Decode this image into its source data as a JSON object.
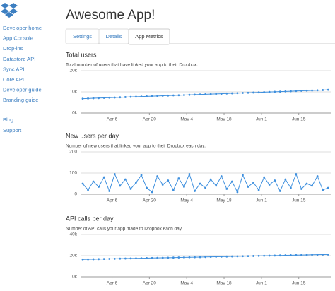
{
  "sidebar": {
    "links": [
      "Developer home",
      "App Console",
      "Drop-ins",
      "Datastore API",
      "Sync API",
      "Core API",
      "Developer guide",
      "Branding guide"
    ],
    "more_links": [
      "Blog",
      "Support"
    ]
  },
  "header": {
    "title": "Awesome App!"
  },
  "tabs": {
    "items": [
      "Settings",
      "Details",
      "App Metrics"
    ],
    "active": 2
  },
  "charts": [
    {
      "type": "line",
      "title": "Total users",
      "subtitle": "Total number of users that have linked your app to their Dropbox.",
      "color": "#3d8fde",
      "x": [
        0,
        2,
        4,
        6,
        8,
        10,
        12,
        14,
        16,
        18,
        20,
        22,
        24,
        26,
        28,
        30,
        32,
        34,
        36,
        38,
        40,
        42,
        44,
        46,
        48,
        50,
        52,
        54,
        56,
        58,
        60,
        62,
        64,
        66,
        68,
        70,
        72,
        74,
        76,
        78,
        80,
        82,
        84,
        86,
        88,
        90,
        92
      ],
      "values": [
        6800,
        6890,
        6980,
        7070,
        7160,
        7250,
        7340,
        7430,
        7520,
        7610,
        7700,
        7790,
        7880,
        7970,
        8060,
        8150,
        8240,
        8330,
        8420,
        8510,
        8600,
        8690,
        8780,
        8870,
        8960,
        9050,
        9140,
        9230,
        9320,
        9410,
        9500,
        9590,
        9680,
        9770,
        9860,
        9950,
        10040,
        10130,
        10220,
        10310,
        10400,
        10490,
        10580,
        10670,
        10760,
        10850,
        10940
      ],
      "xlim": [
        0,
        93
      ],
      "xticks": [
        {
          "value": 11,
          "label": "Apr 6"
        },
        {
          "value": 25,
          "label": "Apr 20"
        },
        {
          "value": 39,
          "label": "May 4"
        },
        {
          "value": 53,
          "label": "May 18"
        },
        {
          "value": 67,
          "label": "Jun 1"
        },
        {
          "value": 81,
          "label": "Jun 15"
        }
      ],
      "ylim": [
        0,
        20000
      ],
      "yticks": [
        {
          "value": 0,
          "label": "0k"
        },
        {
          "value": 10000,
          "label": "10k"
        },
        {
          "value": 20000,
          "label": "20k"
        }
      ],
      "grid": true
    },
    {
      "type": "line",
      "title": "New users per day",
      "subtitle": "Number of new users that linked your app to their Dropbox each day.",
      "color": "#3d8fde",
      "x": [
        0,
        2,
        4,
        6,
        8,
        10,
        12,
        14,
        16,
        18,
        20,
        22,
        24,
        26,
        28,
        30,
        32,
        34,
        36,
        38,
        40,
        42,
        44,
        46,
        48,
        50,
        52,
        54,
        56,
        58,
        60,
        62,
        64,
        66,
        68,
        70,
        72,
        74,
        76,
        78,
        80,
        82,
        84,
        86,
        88,
        90,
        92
      ],
      "values": [
        50,
        20,
        60,
        35,
        80,
        15,
        95,
        40,
        70,
        25,
        55,
        90,
        30,
        10,
        85,
        45,
        65,
        20,
        75,
        35,
        95,
        15,
        50,
        30,
        70,
        40,
        85,
        25,
        60,
        10,
        90,
        35,
        55,
        20,
        80,
        45,
        65,
        15,
        70,
        30,
        95,
        25,
        50,
        40,
        85,
        20,
        30
      ],
      "xlim": [
        0,
        93
      ],
      "xticks": [
        {
          "value": 11,
          "label": "Apr 6"
        },
        {
          "value": 25,
          "label": "Apr 20"
        },
        {
          "value": 39,
          "label": "May 4"
        },
        {
          "value": 53,
          "label": "May 18"
        },
        {
          "value": 67,
          "label": "Jun 1"
        },
        {
          "value": 81,
          "label": "Jun 15"
        }
      ],
      "ylim": [
        0,
        200
      ],
      "yticks": [
        0,
        100,
        200
      ],
      "grid": true
    },
    {
      "type": "line",
      "title": "API calls per day",
      "subtitle": "Number of API calls your app made to Dropbox each day.",
      "color": "#3d8fde",
      "x": [
        0,
        2,
        4,
        6,
        8,
        10,
        12,
        14,
        16,
        18,
        20,
        22,
        24,
        26,
        28,
        30,
        32,
        34,
        36,
        38,
        40,
        42,
        44,
        46,
        48,
        50,
        52,
        54,
        56,
        58,
        60,
        62,
        64,
        66,
        68,
        70,
        72,
        74,
        76,
        78,
        80,
        82,
        84,
        86,
        88,
        90,
        92
      ],
      "values": [
        16500,
        16600,
        16700,
        16800,
        16900,
        17000,
        17100,
        17200,
        17300,
        17400,
        17500,
        17600,
        17700,
        17800,
        17900,
        18000,
        18100,
        18200,
        18300,
        18400,
        18500,
        18600,
        18700,
        18800,
        18900,
        19000,
        19100,
        19200,
        19300,
        19400,
        19500,
        19600,
        19700,
        19800,
        19900,
        20000,
        20100,
        20200,
        20300,
        20400,
        20500,
        20600,
        20700,
        20800,
        20900,
        21000,
        21100
      ],
      "xlim": [
        0,
        93
      ],
      "xticks": [
        {
          "value": 11,
          "label": "Apr 6"
        },
        {
          "value": 25,
          "label": "Apr 20"
        },
        {
          "value": 39,
          "label": "May 4"
        },
        {
          "value": 53,
          "label": "May 18"
        },
        {
          "value": 67,
          "label": "Jun 1"
        },
        {
          "value": 81,
          "label": "Jun 15"
        }
      ],
      "ylim": [
        0,
        40000
      ],
      "yticks": [
        {
          "value": 0,
          "label": "0k"
        },
        {
          "value": 20000,
          "label": "20k"
        },
        {
          "value": 40000,
          "label": "40k"
        }
      ],
      "grid": true
    }
  ]
}
